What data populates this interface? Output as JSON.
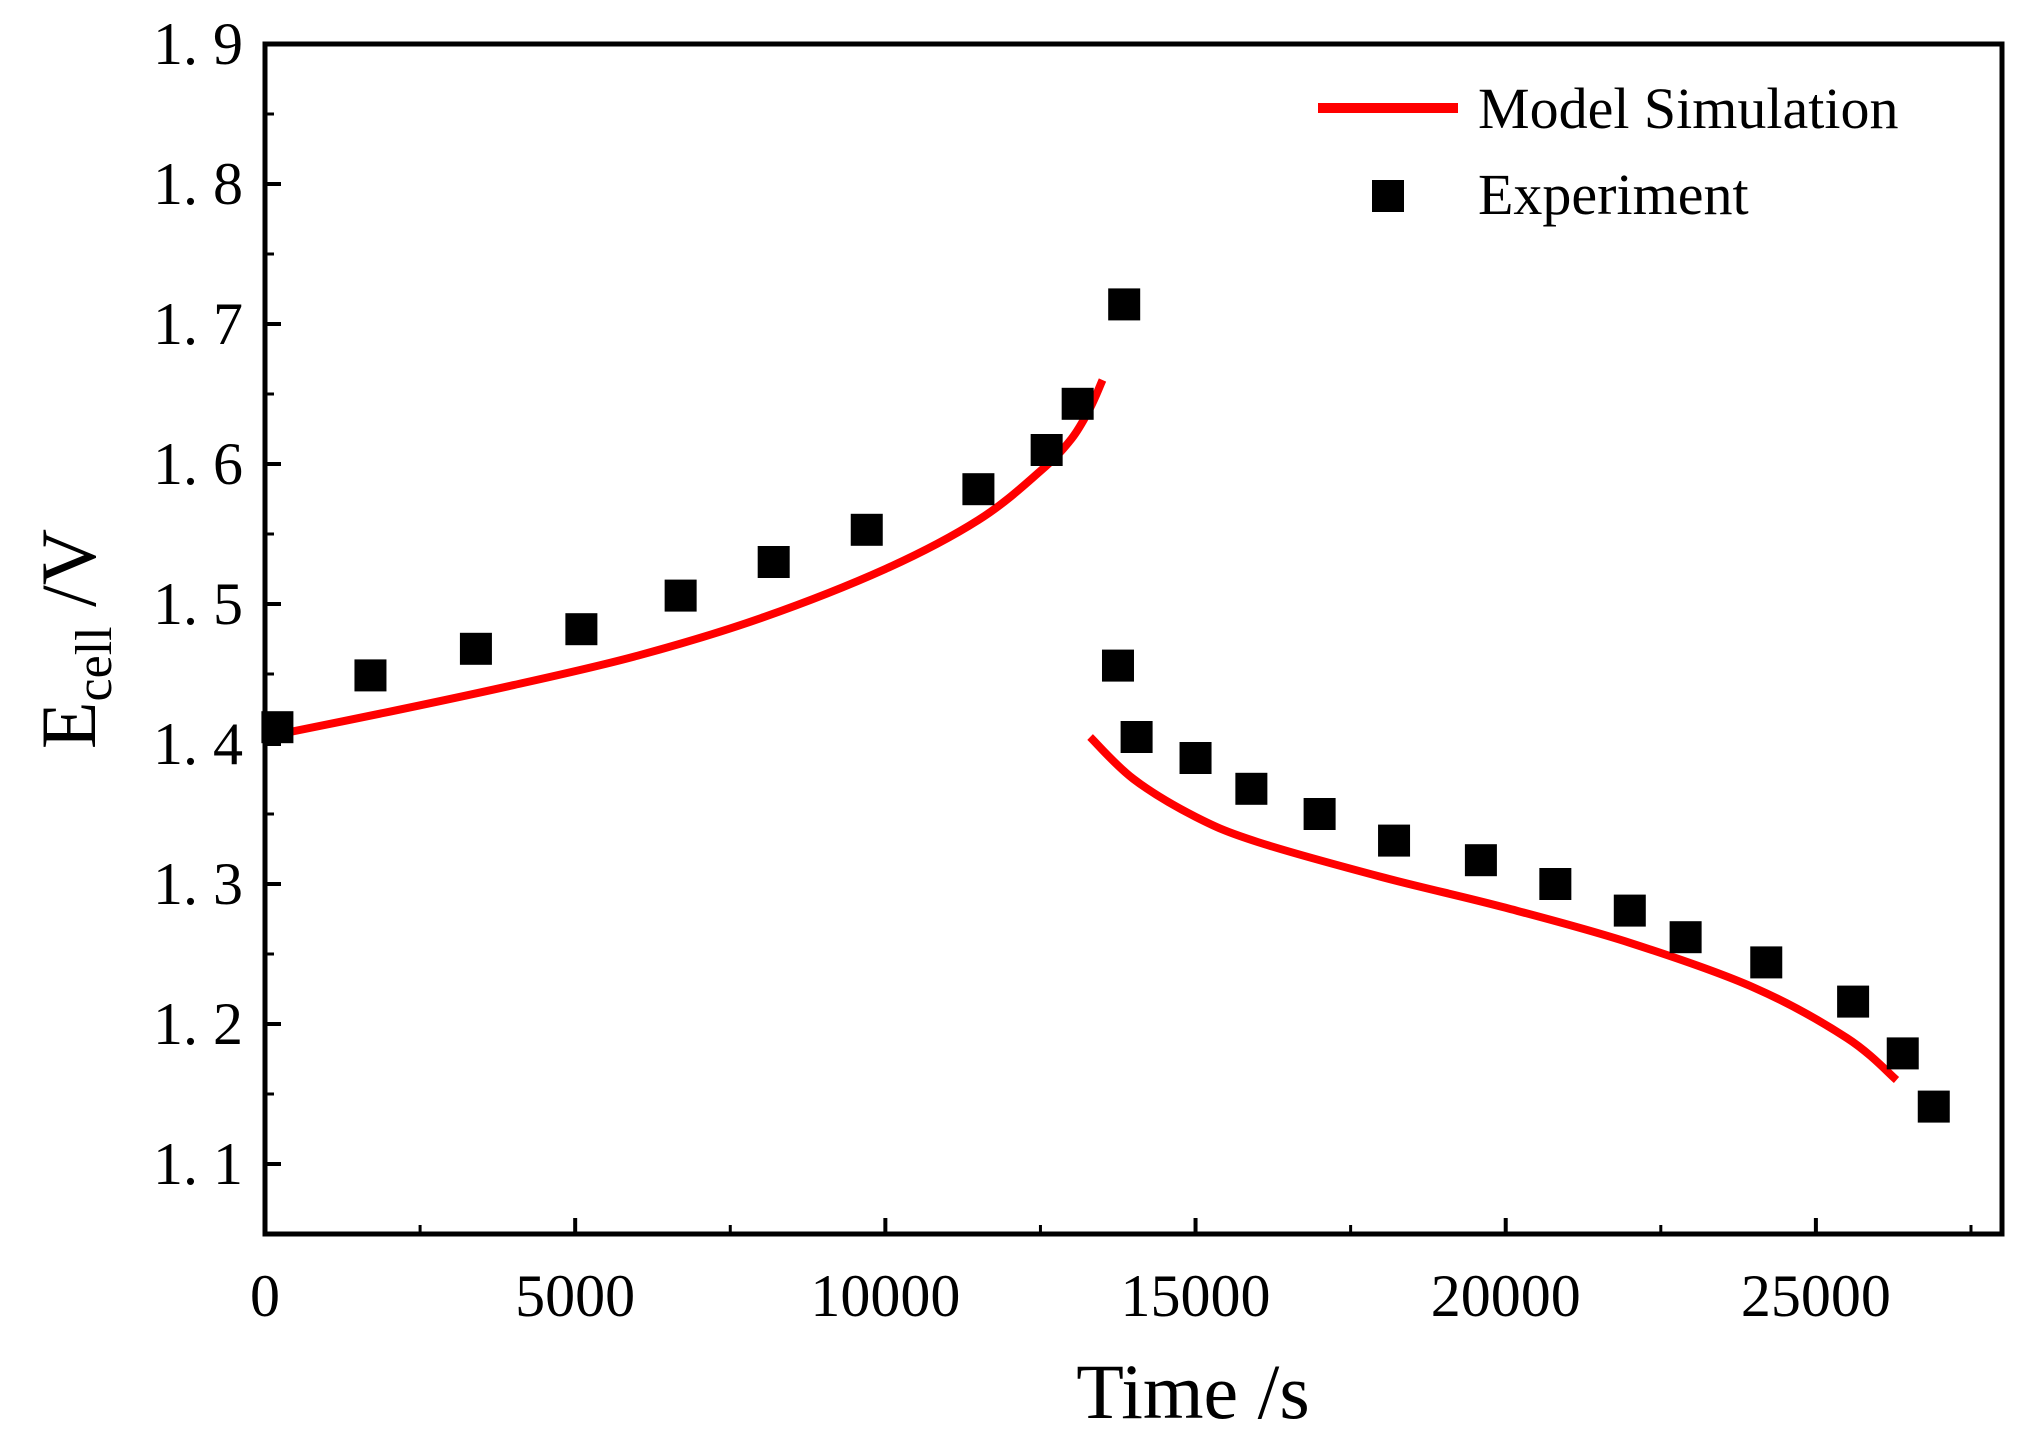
{
  "chart_data": {
    "type": "line+scatter",
    "xlabel": "Time /s",
    "ylabel_main": "E",
    "ylabel_sub": "cell",
    "ylabel_unit": " /V",
    "xlim": [
      0,
      28000
    ],
    "ylim": [
      1.05,
      1.9
    ],
    "x_ticks": [
      0,
      5000,
      10000,
      15000,
      20000,
      25000
    ],
    "x_tick_labels": [
      "0",
      "5000",
      "10000",
      "15000",
      "20000",
      "25000"
    ],
    "y_ticks": [
      1.1,
      1.2,
      1.3,
      1.4,
      1.5,
      1.6,
      1.7,
      1.8,
      1.9
    ],
    "y_tick_labels": [
      "1. 1",
      "1. 2",
      "1. 3",
      "1. 4",
      "1. 5",
      "1. 6",
      "1. 7",
      "1. 8",
      "1. 9"
    ],
    "legend": {
      "position": "top-right",
      "entries": [
        {
          "label": "Model Simulation",
          "kind": "line"
        },
        {
          "label": "Experiment",
          "kind": "square"
        }
      ]
    },
    "colors": {
      "model": "#ff0000",
      "experiment": "#000000",
      "axis": "#000000"
    },
    "series": [
      {
        "name": "Model Simulation",
        "kind": "line",
        "segments": [
          [
            [
              0,
              1.405
            ],
            [
              2000,
              1.423
            ],
            [
              4000,
              1.442
            ],
            [
              6000,
              1.463
            ],
            [
              8000,
              1.49
            ],
            [
              10000,
              1.525
            ],
            [
              11500,
              1.56
            ],
            [
              12500,
              1.595
            ],
            [
              13000,
              1.618
            ],
            [
              13300,
              1.64
            ],
            [
              13500,
              1.66
            ]
          ],
          [
            [
              13300,
              1.405
            ],
            [
              14000,
              1.375
            ],
            [
              15000,
              1.348
            ],
            [
              16000,
              1.33
            ],
            [
              18000,
              1.305
            ],
            [
              20000,
              1.283
            ],
            [
              22000,
              1.258
            ],
            [
              24000,
              1.226
            ],
            [
              25500,
              1.19
            ],
            [
              26300,
              1.16
            ]
          ]
        ]
      },
      {
        "name": "Experiment",
        "kind": "scatter",
        "points": [
          [
            200,
            1.412
          ],
          [
            1700,
            1.449
          ],
          [
            3400,
            1.468
          ],
          [
            5100,
            1.482
          ],
          [
            6700,
            1.506
          ],
          [
            8200,
            1.53
          ],
          [
            9700,
            1.553
          ],
          [
            11500,
            1.582
          ],
          [
            12600,
            1.61
          ],
          [
            13100,
            1.643
          ],
          [
            13850,
            1.714
          ],
          [
            13750,
            1.456
          ],
          [
            14050,
            1.405
          ],
          [
            15000,
            1.39
          ],
          [
            15900,
            1.368
          ],
          [
            17000,
            1.35
          ],
          [
            18200,
            1.331
          ],
          [
            19600,
            1.317
          ],
          [
            20800,
            1.3
          ],
          [
            22000,
            1.281
          ],
          [
            22900,
            1.262
          ],
          [
            24200,
            1.244
          ],
          [
            25600,
            1.216
          ],
          [
            26400,
            1.179
          ],
          [
            26900,
            1.141
          ]
        ]
      }
    ]
  }
}
